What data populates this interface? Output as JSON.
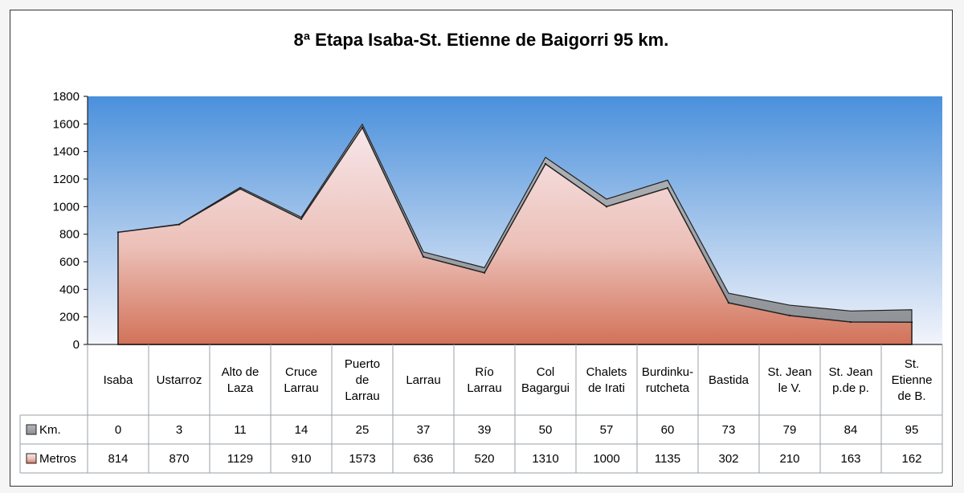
{
  "chart_data": {
    "type": "area",
    "title": "8ª Etapa  Isaba-St. Etienne de Baigorri  95 km.",
    "categories": [
      [
        "Isaba"
      ],
      [
        "Ustarroz"
      ],
      [
        "Alto de",
        "Laza"
      ],
      [
        "Cruce",
        "Larrau"
      ],
      [
        "Puerto",
        "de",
        "Larrau"
      ],
      [
        "Larrau"
      ],
      [
        "Río",
        "Larrau"
      ],
      [
        "Col",
        "Bagargui"
      ],
      [
        "Chalets",
        "de Irati"
      ],
      [
        "Burdinku-",
        "rutcheta"
      ],
      [
        "Bastida"
      ],
      [
        "St. Jean",
        "le V."
      ],
      [
        "St. Jean",
        "p.de p."
      ],
      [
        "St.",
        "Etienne",
        "de B."
      ]
    ],
    "series": [
      {
        "name": "Km.",
        "values": [
          0,
          3,
          11,
          14,
          25,
          37,
          39,
          50,
          57,
          60,
          73,
          79,
          84,
          95
        ],
        "color": "#a8acb0"
      },
      {
        "name": "Metros",
        "values": [
          814,
          870,
          1129,
          910,
          1573,
          636,
          520,
          1310,
          1000,
          1135,
          302,
          210,
          163,
          162
        ],
        "color": "#d9876a"
      }
    ],
    "ylim": [
      0,
      1800
    ],
    "yticks": [
      0,
      200,
      400,
      600,
      800,
      1000,
      1200,
      1400,
      1600,
      1800
    ],
    "grid": false,
    "legend": "bottom-left data table"
  }
}
